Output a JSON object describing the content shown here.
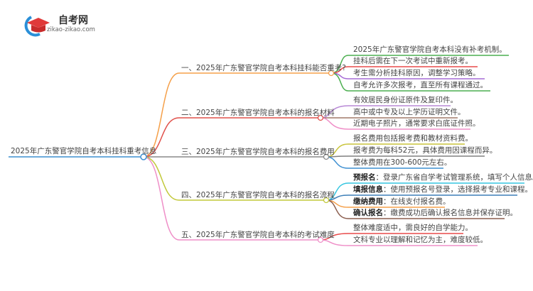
{
  "logo": {
    "title": "自考网",
    "url": "zikao-zikao.com"
  },
  "root": {
    "label": "2025年广东警官学院自考本科挂科重考信息",
    "color": "#3d8fd1"
  },
  "branches": [
    {
      "label": "一、2025年广东警官学院自考本科挂科能否重考?",
      "color": "#f5a04a",
      "leaves": [
        {
          "bold": "",
          "text": "2025年广东警官学院自考本科没有补考机制。",
          "color": "#4caf50"
        },
        {
          "bold": "",
          "text": "挂科后需在下一次考试中重新报考。",
          "color": "#e84a4a"
        },
        {
          "bold": "",
          "text": "考生需分析挂科原因，调整学习策略。",
          "color": "#a66bd6"
        },
        {
          "bold": "",
          "text": "自考允许多次报考，直至所有课程通过。",
          "color": "#4caf50"
        }
      ]
    },
    {
      "label": "二、2025年广东警官学院自考本科的报名材料",
      "color": "#e0504a",
      "leaves": [
        {
          "bold": "",
          "text": "有效居民身份证原件及复印件。",
          "color": "#b889d6"
        },
        {
          "bold": "",
          "text": "高中或中专及以上学历证明文件。",
          "color": "#a07868"
        },
        {
          "bold": "",
          "text": "近期电子照片，通常要求白底证件照。",
          "color": "#ef8fc8"
        }
      ]
    },
    {
      "label": "三、2025年广东警官学院自考本科的报名费用",
      "color": "#888888",
      "leaves": [
        {
          "bold": "",
          "text": "报名费用包括报考费和教材资料费。",
          "color": "#c9c43a"
        },
        {
          "bold": "",
          "text": "报考费为每科52元，具体费用因课程而异。",
          "color": "#808080"
        },
        {
          "bold": "",
          "text": "整体费用在300-600元左右。",
          "color": "#3d8fd1"
        }
      ]
    },
    {
      "label": "四、2025年广东警官学院自考本科的报名流程",
      "color": "#c2c83a",
      "leaves": [
        {
          "bold": "预报名",
          "text": "：登录广东省自学考试管理系统，填写个人信息。",
          "color": "#35c6e0"
        },
        {
          "bold": "填报信息",
          "text": "：使用预报名号登录，选择报考专业和课程。",
          "color": "#3d7fb8"
        },
        {
          "bold": "缴纳费用",
          "text": "：在线支付报名费。",
          "color": "#f5a04a"
        },
        {
          "bold": "确认报名",
          "text": "：缴费成功后确认报名信息并保存证明。",
          "color": "#8b5e4f"
        }
      ]
    },
    {
      "label": "五、2025年广东警官学院自考本科的考试难度",
      "color": "#ef8fc8",
      "leaves": [
        {
          "bold": "",
          "text": "整体难度适中，需良好的自学能力。",
          "color": "#e84a4a"
        },
        {
          "bold": "",
          "text": "文科专业以理解和记忆为主，难度较低。",
          "color": "#ef8fc8"
        }
      ]
    }
  ]
}
